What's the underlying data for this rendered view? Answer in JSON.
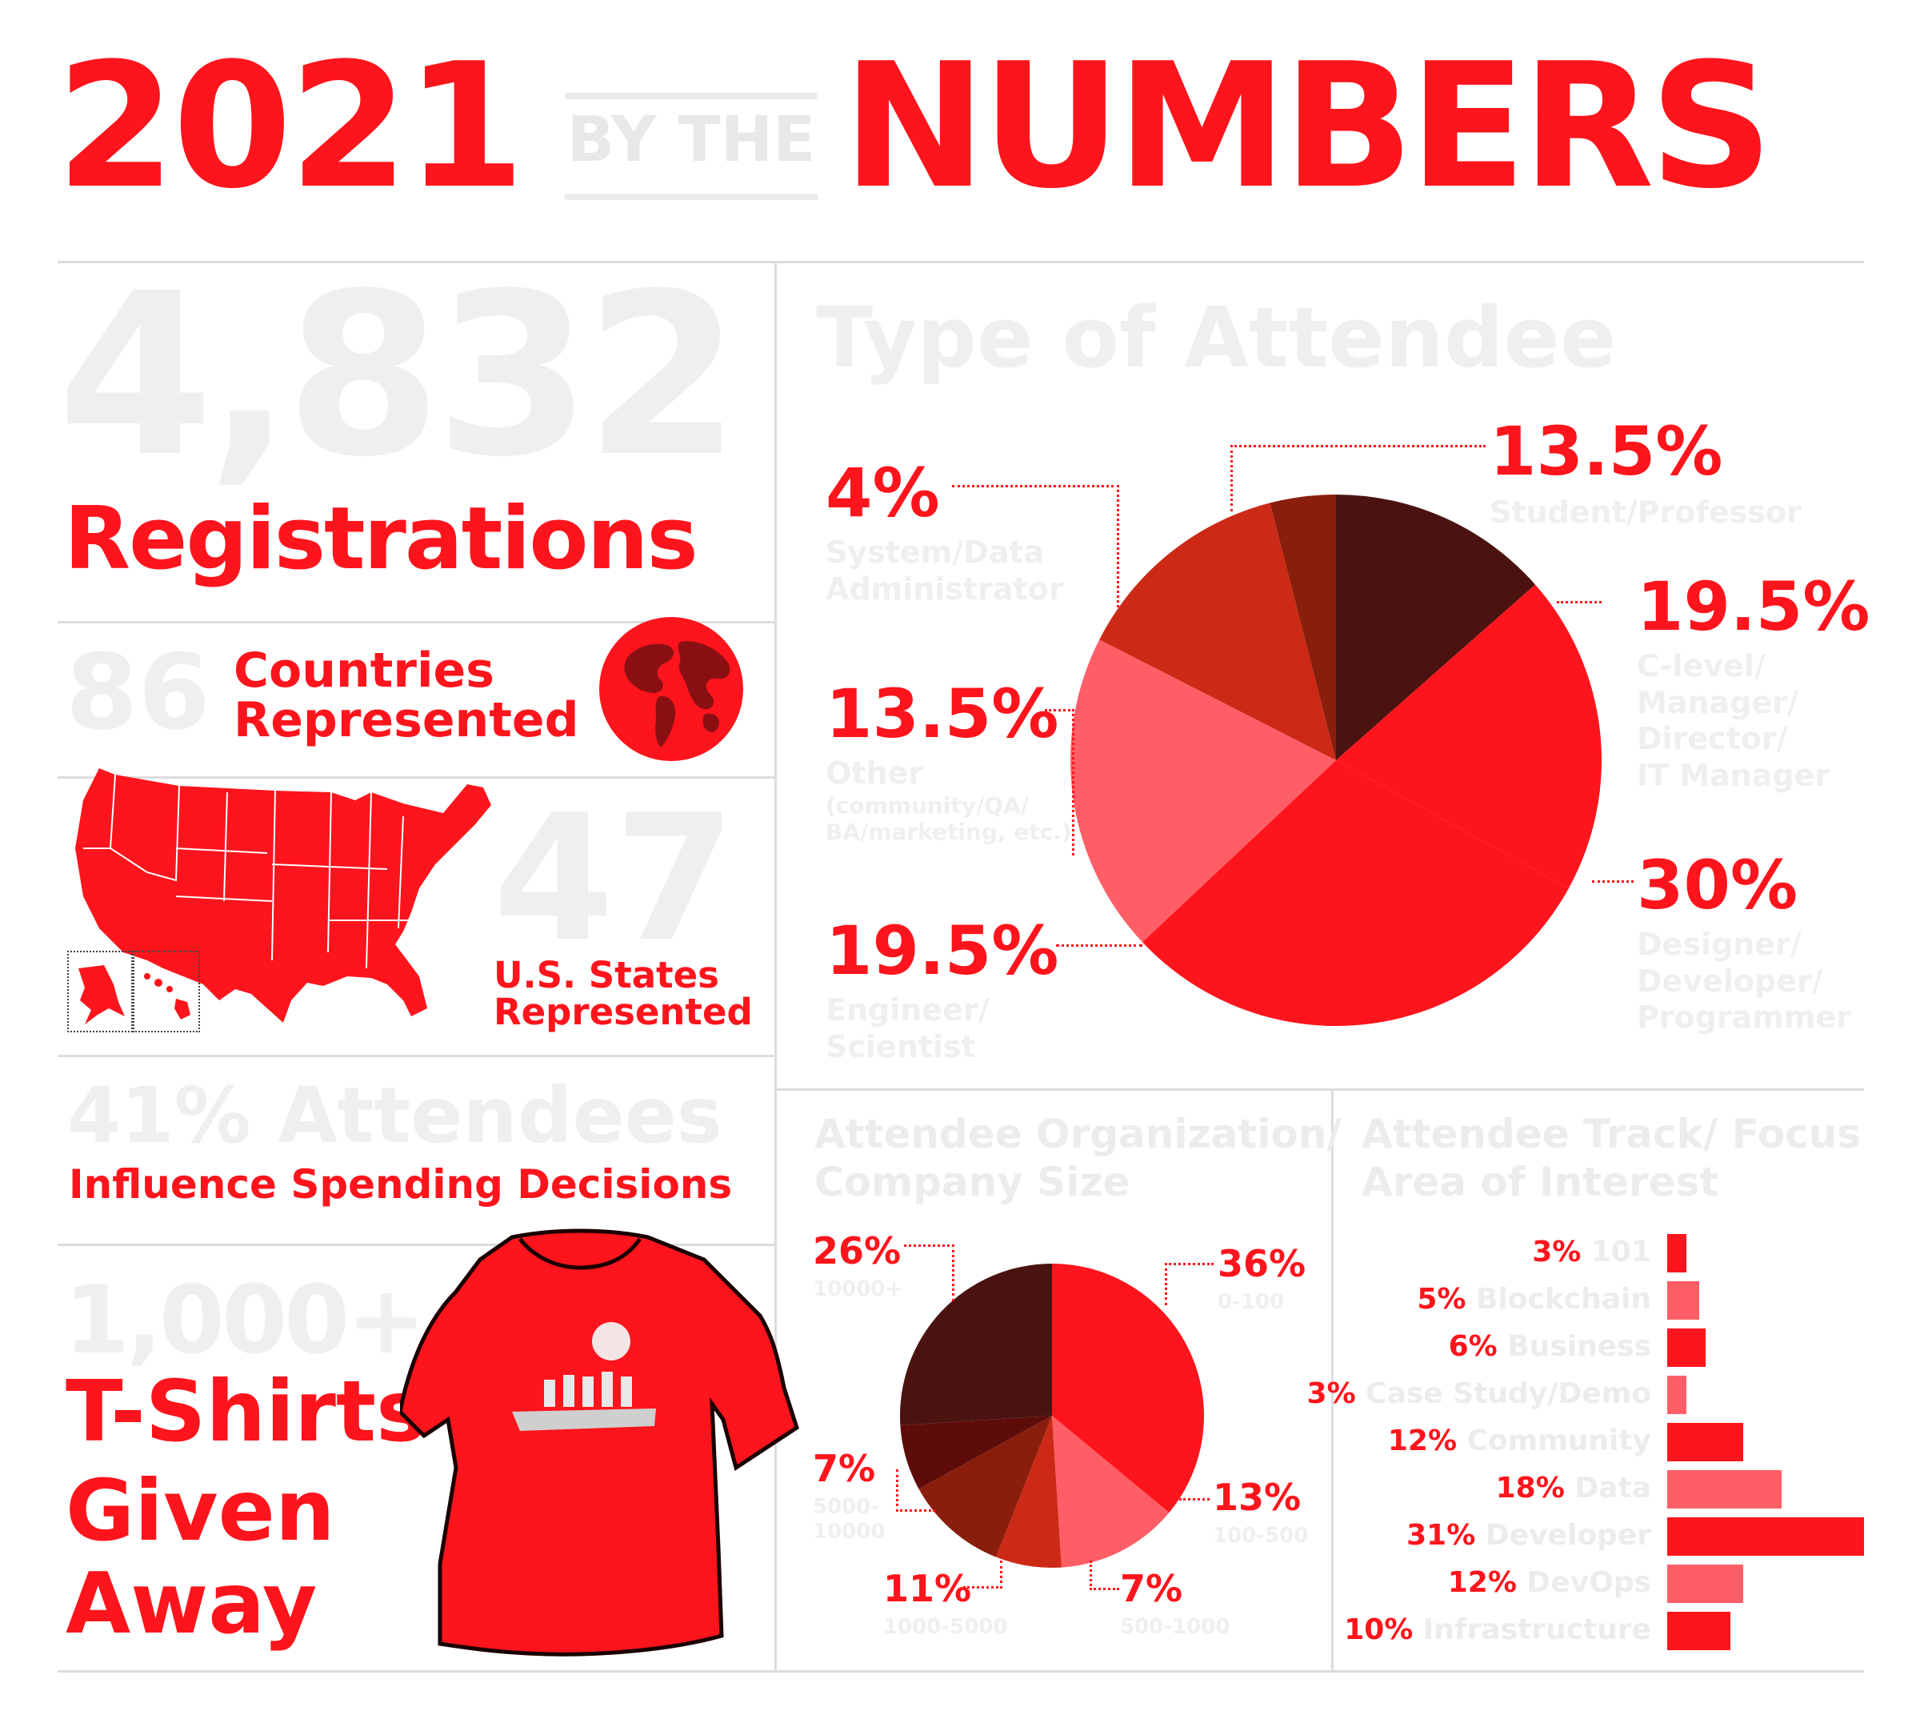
{
  "header": {
    "year": "2021",
    "by_the": "BY THE",
    "numbers": "NUMBERS"
  },
  "registrations": {
    "value": "4,832",
    "label": "Registrations"
  },
  "countries": {
    "value": "86",
    "label_line1": "Countries",
    "label_line2": "Represented"
  },
  "states": {
    "value": "47",
    "label_line1": "U.S. States",
    "label_line2": "Represented"
  },
  "influence": {
    "headline": "41% Attendees",
    "label": "Influence Spending Decisions"
  },
  "tshirts": {
    "value": "1,000+",
    "line1": "T-Shirts",
    "line2": "Given",
    "line3": "Away"
  },
  "attendee_type": {
    "title": "Type of Attendee",
    "labels": [
      {
        "pct": "13.5%",
        "lines": [
          "Student/Professor"
        ]
      },
      {
        "pct": "19.5%",
        "lines": [
          "C-level/",
          "Manager/",
          "Director/",
          "IT Manager"
        ]
      },
      {
        "pct": "30%",
        "lines": [
          "Designer/",
          "Developer/",
          "Programmer"
        ]
      },
      {
        "pct": "19.5%",
        "lines": [
          "Engineer/",
          "Scientist"
        ]
      },
      {
        "pct": "13.5%",
        "lines": [
          "Other",
          "(community/QA/",
          "BA/marketing, etc.)"
        ]
      },
      {
        "pct": "4%",
        "lines": [
          "System/Data",
          "Administrator"
        ]
      }
    ]
  },
  "company_size": {
    "title_line1": "Attendee Organization/",
    "title_line2": "Company Size",
    "labels": [
      {
        "pct": "36%",
        "cat": "0-100"
      },
      {
        "pct": "13%",
        "cat": "100-500"
      },
      {
        "pct": "7%",
        "cat": "500-1000"
      },
      {
        "pct": "11%",
        "cat": "1000-5000"
      },
      {
        "pct": "7%",
        "cat_line1": "5000-",
        "cat_line2": "10000"
      },
      {
        "pct": "26%",
        "cat": "10000+"
      }
    ]
  },
  "track": {
    "title_line1": "Attendee Track/ Focus",
    "title_line2": "Area of Interest",
    "labels": [
      {
        "pct": "3%",
        "cat": "101"
      },
      {
        "pct": "5%",
        "cat": "Blockchain"
      },
      {
        "pct": "6%",
        "cat": "Business"
      },
      {
        "pct": "3%",
        "cat": "Case Study/Demo"
      },
      {
        "pct": "12%",
        "cat": "Community"
      },
      {
        "pct": "18%",
        "cat": "Data"
      },
      {
        "pct": "31%",
        "cat": "Developer"
      },
      {
        "pct": "12%",
        "cat": "DevOps"
      },
      {
        "pct": "10%",
        "cat": "Infrastructure"
      }
    ]
  },
  "chart_data": [
    {
      "type": "pie",
      "title": "Type of Attendee",
      "categories": [
        "Student/Professor",
        "C-level/Manager/Director/IT Manager",
        "Designer/Developer/Programmer",
        "Engineer/Scientist",
        "Other (community/QA/BA/marketing, etc.)",
        "System/Data Administrator"
      ],
      "values": [
        13.5,
        19.5,
        30,
        19.5,
        13.5,
        4
      ],
      "colors": [
        "#4a1310",
        "#fe141c",
        "#fe141c",
        "#ff5e66",
        "#cc2a16",
        "#8a1e0c"
      ]
    },
    {
      "type": "pie",
      "title": "Attendee Organization/ Company Size",
      "categories": [
        "0-100",
        "100-500",
        "500-1000",
        "1000-5000",
        "5000-10000",
        "10000+"
      ],
      "values": [
        36,
        13,
        7,
        11,
        7,
        26
      ],
      "colors": [
        "#fe141c",
        "#ff5e66",
        "#cc2a16",
        "#8a1e0c",
        "#5e0c0a",
        "#4a1310"
      ]
    },
    {
      "type": "bar",
      "title": "Attendee Track/ Focus Area of Interest",
      "categories": [
        "101",
        "Blockchain",
        "Business",
        "Case Study/Demo",
        "Community",
        "Data",
        "Developer",
        "DevOps",
        "Infrastructure"
      ],
      "values": [
        3,
        5,
        6,
        3,
        12,
        18,
        31,
        12,
        10
      ],
      "colors": [
        "#fe141c",
        "#ff5e66",
        "#fe141c",
        "#ff5e66",
        "#fe141c",
        "#ff5e66",
        "#fe141c",
        "#ff5e66",
        "#fe141c"
      ]
    }
  ]
}
